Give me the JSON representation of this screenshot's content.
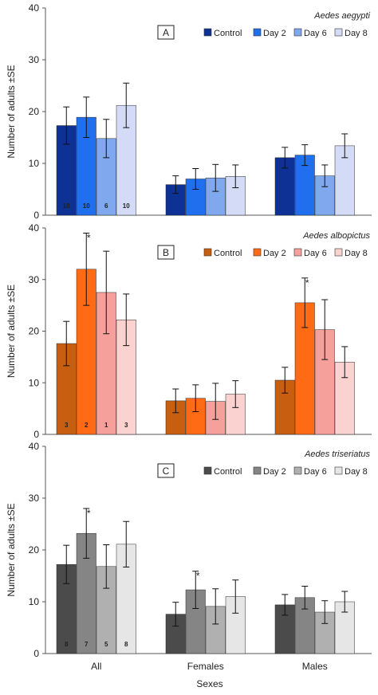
{
  "chart_data": [
    {
      "type": "bar",
      "panel": "A",
      "species": "Aedes aegypti",
      "ylabel": "Number of adults ±SE",
      "ylim": [
        0,
        40
      ],
      "yticks": [
        "0",
        "10",
        "20",
        "30",
        "40"
      ],
      "categories": [
        "All",
        "Females",
        "Males"
      ],
      "colors": [
        "#0d3194",
        "#1f6fef",
        "#7fa8ee",
        "#d4dbf6"
      ],
      "series": [
        {
          "name": "Control",
          "values": [
            17.3,
            5.9,
            11.1
          ],
          "se": [
            3.6,
            1.7,
            2.0
          ],
          "n_labels": [
            "10",
            "",
            ""
          ],
          "stars": [
            false,
            false,
            false
          ]
        },
        {
          "name": "Day 2",
          "values": [
            18.9,
            7.0,
            11.6
          ],
          "se": [
            3.9,
            2.0,
            2.0
          ],
          "n_labels": [
            "10",
            "",
            ""
          ],
          "stars": [
            false,
            false,
            false
          ]
        },
        {
          "name": "Day 6",
          "values": [
            14.8,
            7.2,
            7.6
          ],
          "se": [
            3.7,
            2.6,
            2.1
          ],
          "n_labels": [
            "6",
            "",
            ""
          ],
          "stars": [
            false,
            false,
            false
          ]
        },
        {
          "name": "Day 8",
          "values": [
            21.2,
            7.5,
            13.4
          ],
          "se": [
            4.3,
            2.2,
            2.3
          ],
          "n_labels": [
            "10",
            "",
            ""
          ],
          "stars": [
            false,
            false,
            false
          ]
        }
      ]
    },
    {
      "type": "bar",
      "panel": "B",
      "species": "Aedes albopictus",
      "ylabel": "Number of adults ±SE",
      "ylim": [
        0,
        40
      ],
      "yticks": [
        "0",
        "10",
        "20",
        "30",
        "40"
      ],
      "categories": [
        "All",
        "Females",
        "Males"
      ],
      "colors": [
        "#c85e10",
        "#ff6a14",
        "#f6a09c",
        "#fad2d0"
      ],
      "series": [
        {
          "name": "Control",
          "values": [
            17.6,
            6.5,
            10.5
          ],
          "se": [
            4.3,
            2.3,
            2.5
          ],
          "n_labels": [
            "3",
            "",
            ""
          ],
          "stars": [
            false,
            false,
            false
          ]
        },
        {
          "name": "Day 2",
          "values": [
            32.0,
            7.0,
            25.5
          ],
          "se": [
            7.0,
            2.6,
            4.8
          ],
          "n_labels": [
            "2",
            "",
            ""
          ],
          "stars": [
            true,
            false,
            true
          ]
        },
        {
          "name": "Day 6",
          "values": [
            27.5,
            6.4,
            20.3
          ],
          "se": [
            8.0,
            3.5,
            5.8
          ],
          "n_labels": [
            "1",
            "",
            ""
          ],
          "stars": [
            false,
            false,
            false
          ]
        },
        {
          "name": "Day 8",
          "values": [
            22.2,
            7.8,
            14.0
          ],
          "se": [
            5.0,
            2.6,
            3.0
          ],
          "n_labels": [
            "3",
            "",
            ""
          ],
          "stars": [
            false,
            false,
            false
          ]
        }
      ]
    },
    {
      "type": "bar",
      "panel": "C",
      "species": "Aedes triseriatus",
      "ylabel": "Number of adults ±SE",
      "xlabel": "Sexes",
      "ylim": [
        0,
        40
      ],
      "yticks": [
        "0",
        "10",
        "20",
        "30",
        "40"
      ],
      "categories": [
        "All",
        "Females",
        "Males"
      ],
      "colors": [
        "#4b4b4b",
        "#858585",
        "#b0b0b0",
        "#e6e6e6"
      ],
      "series": [
        {
          "name": "Control",
          "values": [
            17.2,
            7.6,
            9.4
          ],
          "se": [
            3.7,
            2.3,
            2.0
          ],
          "n_labels": [
            "8",
            "",
            ""
          ],
          "stars": [
            false,
            false,
            false
          ]
        },
        {
          "name": "Day 2",
          "values": [
            23.2,
            12.3,
            10.8
          ],
          "se": [
            4.8,
            3.6,
            2.2
          ],
          "n_labels": [
            "7",
            "",
            ""
          ],
          "stars": [
            true,
            true,
            false
          ]
        },
        {
          "name": "Day 6",
          "values": [
            16.8,
            9.1,
            8.0
          ],
          "se": [
            4.2,
            3.4,
            2.2
          ],
          "n_labels": [
            "5",
            "",
            ""
          ],
          "stars": [
            false,
            false,
            false
          ]
        },
        {
          "name": "Day 8",
          "values": [
            21.1,
            11.0,
            10.0
          ],
          "se": [
            4.4,
            3.2,
            2.0
          ],
          "n_labels": [
            "8",
            "",
            ""
          ],
          "stars": [
            false,
            false,
            false
          ]
        }
      ]
    }
  ]
}
